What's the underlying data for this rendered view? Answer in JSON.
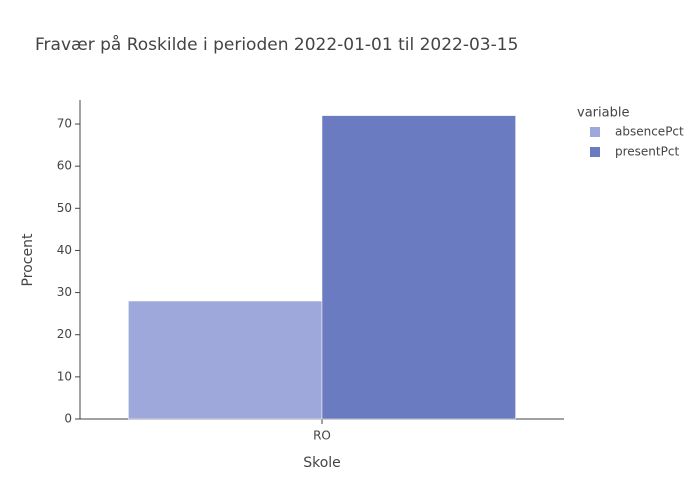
{
  "chart_data": {
    "type": "bar",
    "title": "Fravær på Roskilde i perioden 2022-01-01 til 2022-03-15",
    "x_label": "Skole",
    "y_label": "Procent",
    "legend_title": "variable",
    "categories": [
      "RO"
    ],
    "series": [
      {
        "name": "absencePct",
        "color": "#9fa8da",
        "values": [
          28
        ]
      },
      {
        "name": "presentPct",
        "color": "#6b7bc1",
        "values": [
          72
        ]
      }
    ],
    "ylim": [
      0,
      75.7
    ],
    "yticks": [
      0,
      10,
      20,
      30,
      40,
      50,
      60,
      70
    ],
    "grid": false,
    "legend_position": "right"
  }
}
